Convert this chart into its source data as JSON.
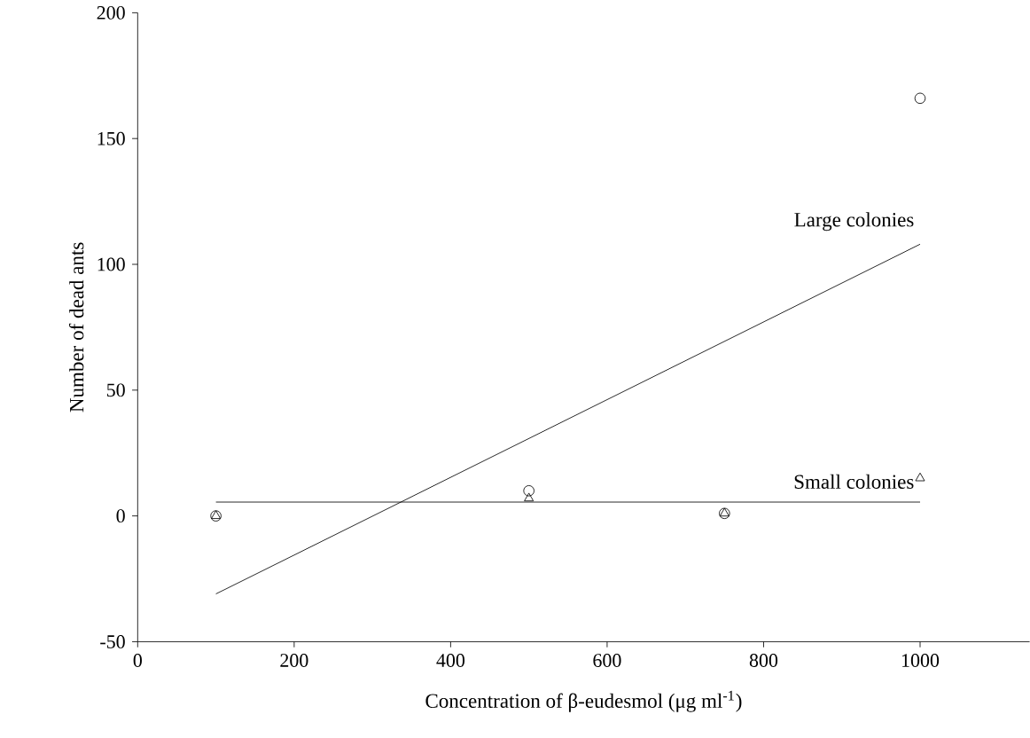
{
  "chart_data": {
    "type": "scatter",
    "xlabel": "Concentration of β-eudesmol (μg ml$^{-1}$)",
    "ylabel": "Number of dead ants",
    "xlim": [
      0,
      1140
    ],
    "xticks": [
      0,
      200,
      400,
      600,
      800,
      1000
    ],
    "ylim": [
      -50,
      200
    ],
    "yticks": [
      -50,
      0,
      50,
      100,
      150,
      200
    ],
    "grid": false,
    "legend": false,
    "series": [
      {
        "marker": "circle",
        "color": "#000000",
        "x": [
          100,
          500,
          750,
          1000
        ],
        "values": [
          0,
          10,
          1,
          166
        ]
      },
      {
        "marker": "triangle",
        "color": "#000000",
        "x": [
          100,
          500,
          750,
          1000
        ],
        "values": [
          0,
          7,
          1,
          15
        ]
      },
      {
        "type": "line",
        "name": "Large colonies",
        "marker": "none",
        "color": "#000000",
        "x": [
          100,
          1000
        ],
        "values": [
          -31,
          108
        ]
      },
      {
        "type": "line",
        "name": "Small colonies",
        "marker": "none",
        "color": "#000000",
        "x": [
          100,
          1000
        ],
        "values": [
          5.5,
          5.5
        ]
      }
    ]
  }
}
